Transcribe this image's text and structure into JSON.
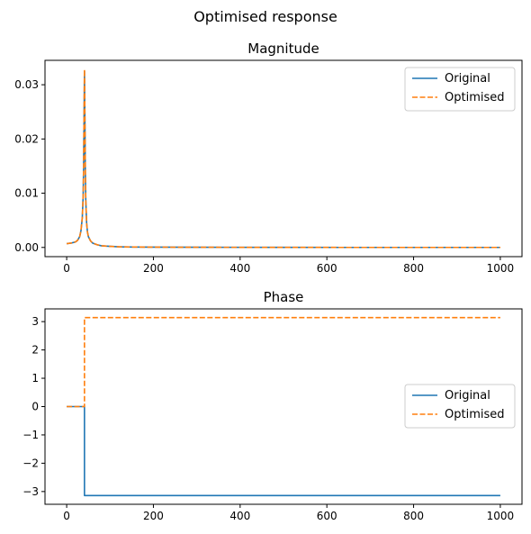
{
  "figure": {
    "suptitle": "Optimised response"
  },
  "chart_data": [
    {
      "type": "line",
      "title": "Magnitude",
      "xlabel": "",
      "ylabel": "",
      "xlim": [
        -50,
        1050
      ],
      "ylim": [
        -0.0017,
        0.0345
      ],
      "xticks": [
        0,
        200,
        400,
        600,
        800,
        1000
      ],
      "xtick_labels": [
        "0",
        "200",
        "400",
        "600",
        "800",
        "1000"
      ],
      "yticks": [
        0.0,
        0.01,
        0.02,
        0.03
      ],
      "ytick_labels": [
        "0.00",
        "0.01",
        "0.02",
        "0.03"
      ],
      "grid": false,
      "legend_position": "top-right",
      "series": [
        {
          "name": "Original",
          "color": "#1f77b4",
          "style": "solid",
          "x": [
            0,
            10,
            20,
            25,
            30,
            33,
            36,
            38,
            39,
            40,
            41,
            42,
            43,
            44,
            46,
            48,
            50,
            55,
            60,
            70,
            80,
            100,
            120,
            150,
            200,
            300,
            500,
            700,
            1000
          ],
          "y": [
            0.0007,
            0.0008,
            0.001,
            0.0013,
            0.002,
            0.0031,
            0.0055,
            0.0095,
            0.0145,
            0.0235,
            0.0325,
            0.024,
            0.014,
            0.0088,
            0.0045,
            0.0028,
            0.002,
            0.0012,
            0.0008,
            0.0005,
            0.0003,
            0.0002,
            0.00012,
            8e-05,
            5e-05,
            3e-05,
            1e-05,
            0.0,
            0.0
          ]
        },
        {
          "name": "Optimised",
          "color": "#ff7f0e",
          "style": "dashed",
          "x": [
            0,
            10,
            20,
            25,
            30,
            33,
            36,
            38,
            39,
            40,
            41,
            42,
            43,
            44,
            46,
            48,
            50,
            55,
            60,
            70,
            80,
            100,
            120,
            150,
            200,
            300,
            500,
            700,
            1000
          ],
          "y": [
            0.0007,
            0.0008,
            0.001,
            0.0013,
            0.002,
            0.0031,
            0.0055,
            0.0095,
            0.0145,
            0.0235,
            0.0328,
            0.024,
            0.014,
            0.0088,
            0.0045,
            0.0028,
            0.002,
            0.0012,
            0.0008,
            0.0005,
            0.0003,
            0.0002,
            0.00012,
            8e-05,
            5e-05,
            3e-05,
            1e-05,
            0.0,
            0.0
          ]
        }
      ]
    },
    {
      "type": "line",
      "title": "Phase",
      "xlabel": "",
      "ylabel": "",
      "xlim": [
        -50,
        1050
      ],
      "ylim": [
        -3.45,
        3.45
      ],
      "xticks": [
        0,
        200,
        400,
        600,
        800,
        1000
      ],
      "xtick_labels": [
        "0",
        "200",
        "400",
        "600",
        "800",
        "1000"
      ],
      "yticks": [
        -3,
        -2,
        -1,
        0,
        1,
        2,
        3
      ],
      "ytick_labels": [
        "−3",
        "−2",
        "−1",
        "0",
        "1",
        "2",
        "3"
      ],
      "grid": false,
      "legend_position": "center-right",
      "series": [
        {
          "name": "Original",
          "color": "#1f77b4",
          "style": "solid",
          "x": [
            0,
            41,
            41,
            1000
          ],
          "y": [
            0,
            0,
            -3.1416,
            -3.1416
          ]
        },
        {
          "name": "Optimised",
          "color": "#ff7f0e",
          "style": "dashed",
          "x": [
            0,
            41,
            41,
            1000
          ],
          "y": [
            0,
            0,
            3.1416,
            3.1416
          ]
        }
      ]
    }
  ]
}
